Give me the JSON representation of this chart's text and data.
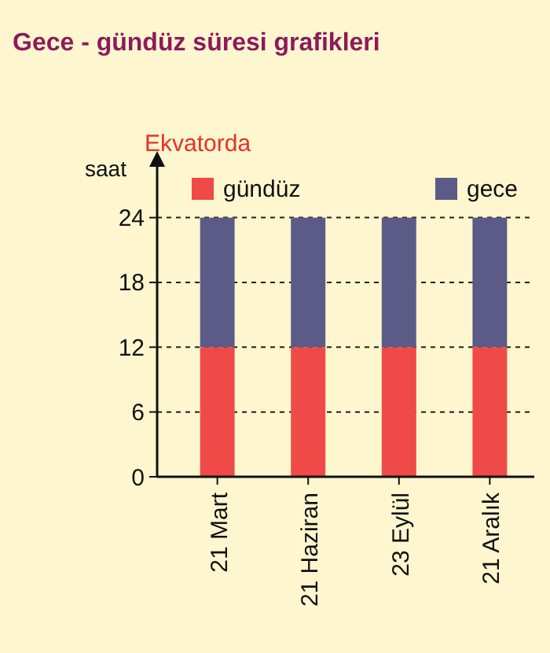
{
  "chart_data": {
    "type": "bar",
    "title": "Gece - gündüz süresi grafikleri",
    "subtitle": "Ekvatorda",
    "ylabel": "saat",
    "categories": [
      "21 Mart",
      "21 Haziran",
      "23 Eylül",
      "21 Aralık"
    ],
    "series": [
      {
        "name": "gündüz",
        "color": "#f04a48",
        "values": [
          12,
          12,
          12,
          12
        ]
      },
      {
        "name": "gece",
        "color": "#5c5a86",
        "values": [
          12,
          12,
          12,
          12
        ]
      }
    ],
    "stacked": true,
    "ylim": [
      0,
      29
    ],
    "yticks": [
      0,
      6,
      12,
      18,
      24
    ],
    "grid": "y",
    "legend": "top"
  }
}
